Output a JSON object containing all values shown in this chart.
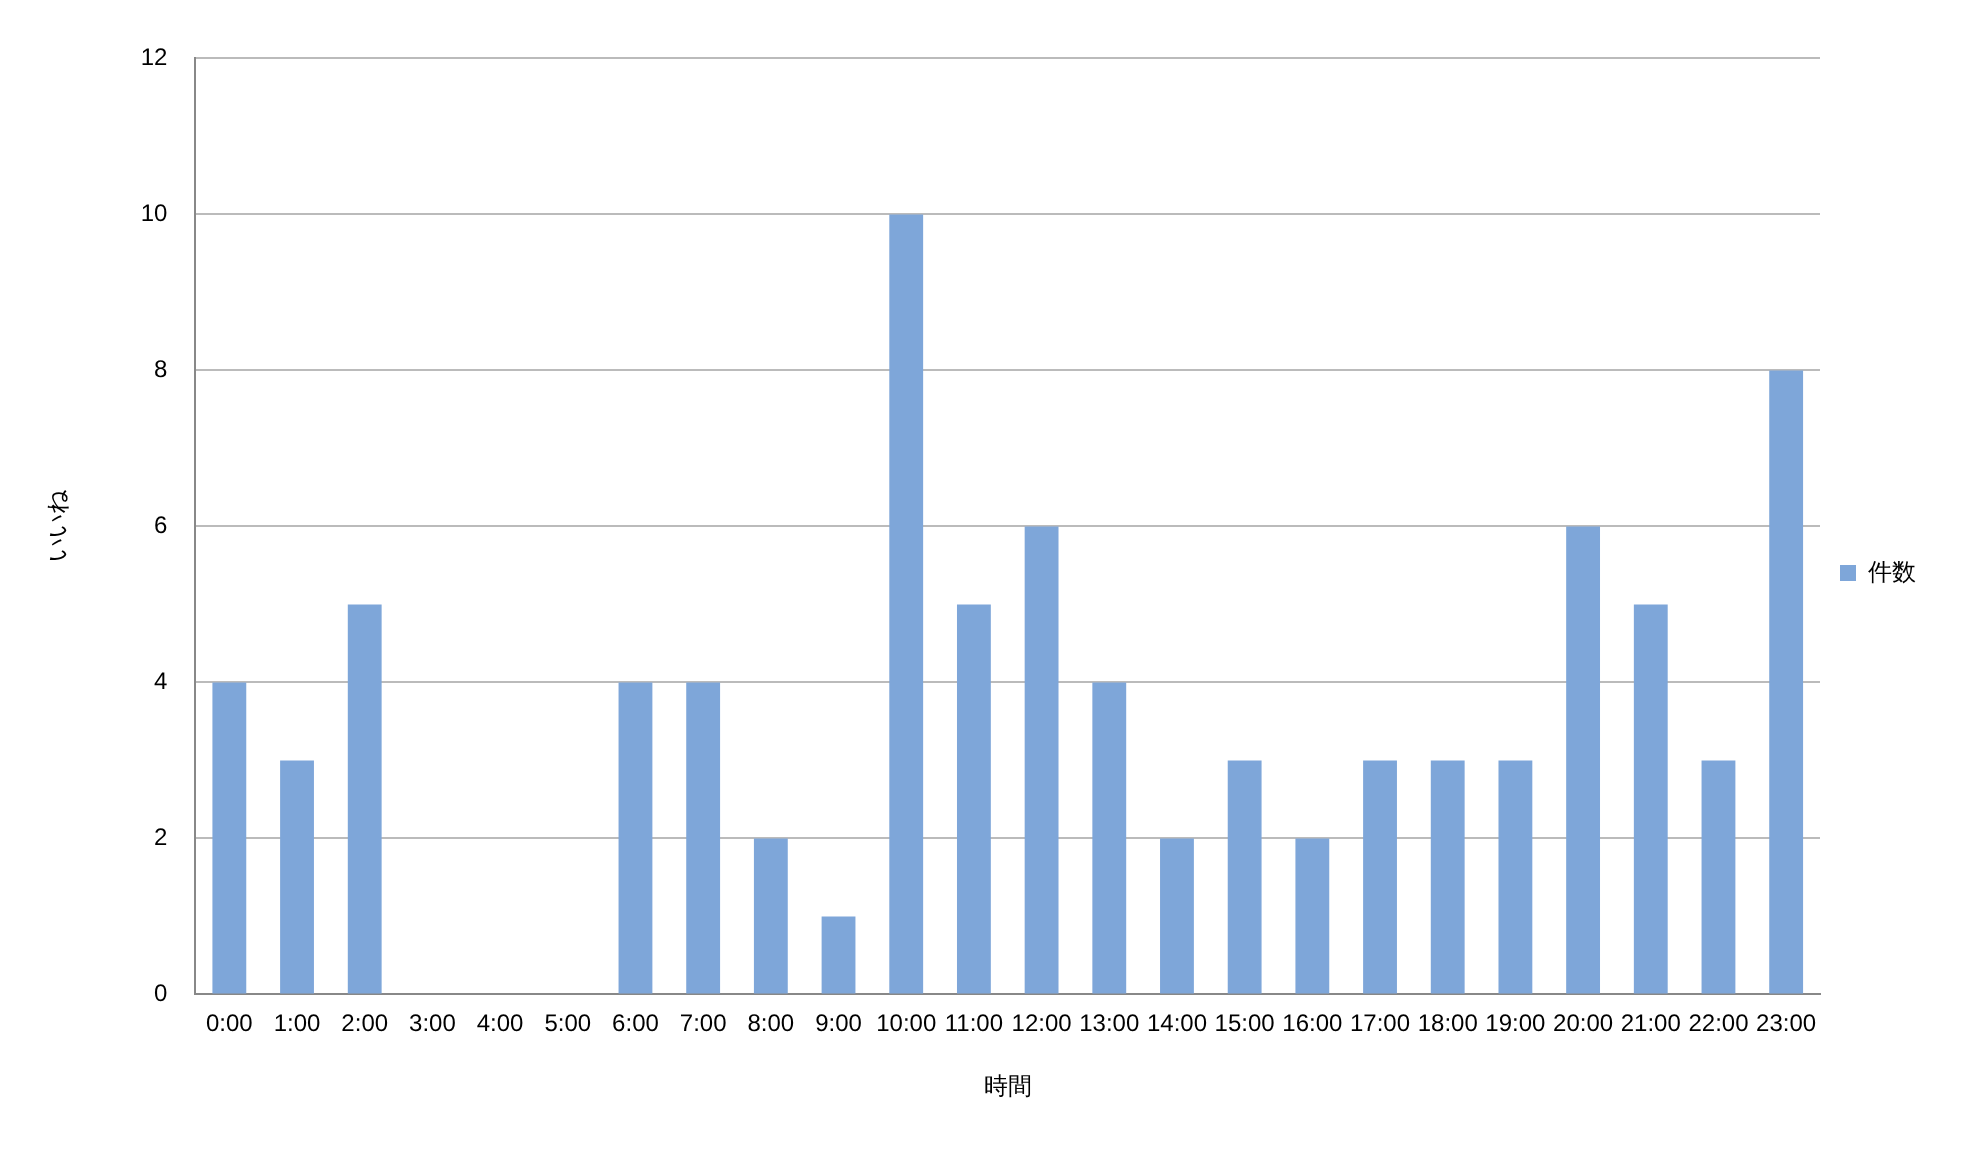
{
  "chart_data": {
    "type": "bar",
    "xlabel": "時間",
    "ylabel": "いいね",
    "categories": [
      "0:00",
      "1:00",
      "2:00",
      "3:00",
      "4:00",
      "5:00",
      "6:00",
      "7:00",
      "8:00",
      "9:00",
      "10:00",
      "11:00",
      "12:00",
      "13:00",
      "14:00",
      "15:00",
      "16:00",
      "17:00",
      "18:00",
      "19:00",
      "20:00",
      "21:00",
      "22:00",
      "23:00"
    ],
    "series": [
      {
        "name": "件数",
        "color": "#7ea6d9",
        "values": [
          4,
          3,
          5,
          0,
          0,
          0,
          4,
          4,
          2,
          1,
          10,
          5,
          6,
          4,
          2,
          3,
          2,
          3,
          3,
          3,
          6,
          5,
          3,
          8
        ]
      }
    ],
    "ylim": [
      0,
      12
    ],
    "yticks": [
      0,
      2,
      4,
      6,
      8,
      10,
      12
    ],
    "grid": "y",
    "legend": "right"
  }
}
